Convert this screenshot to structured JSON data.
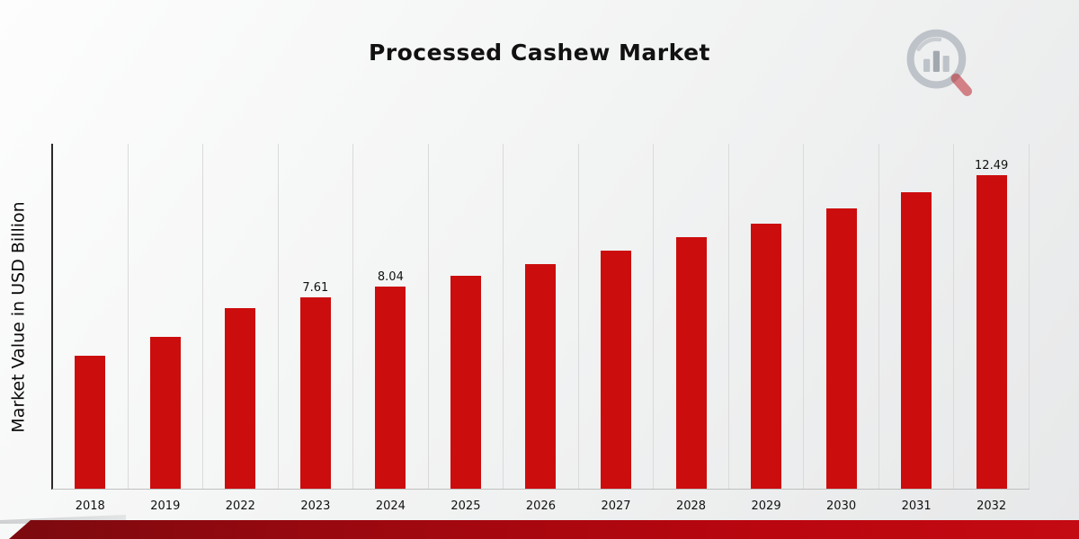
{
  "title": "Processed Cashew Market",
  "y_axis_title": "Market Value in USD Billion",
  "logo": {
    "name": "market-research-chart-logo"
  },
  "chart_data": {
    "type": "bar",
    "title": "Processed Cashew Market",
    "xlabel": "",
    "ylabel": "Market Value in USD Billion",
    "ylim": [
      0,
      13.75
    ],
    "grid": "vertical-light-gray",
    "legend": "none",
    "bar_color": "#cc0d0d",
    "categories": [
      "2018",
      "2019",
      "2022",
      "2023",
      "2024",
      "2025",
      "2026",
      "2027",
      "2028",
      "2029",
      "2030",
      "2031",
      "2032"
    ],
    "values": [
      5.3,
      6.05,
      7.2,
      7.61,
      8.04,
      8.49,
      8.97,
      9.48,
      10.02,
      10.58,
      11.18,
      11.81,
      12.49
    ],
    "data_labels": {
      "2023": "7.61",
      "2024": "8.04",
      "2032": "12.49"
    }
  },
  "footer": {
    "accent_dark": "#7a0a0f",
    "accent_bright": "#c40a12"
  }
}
